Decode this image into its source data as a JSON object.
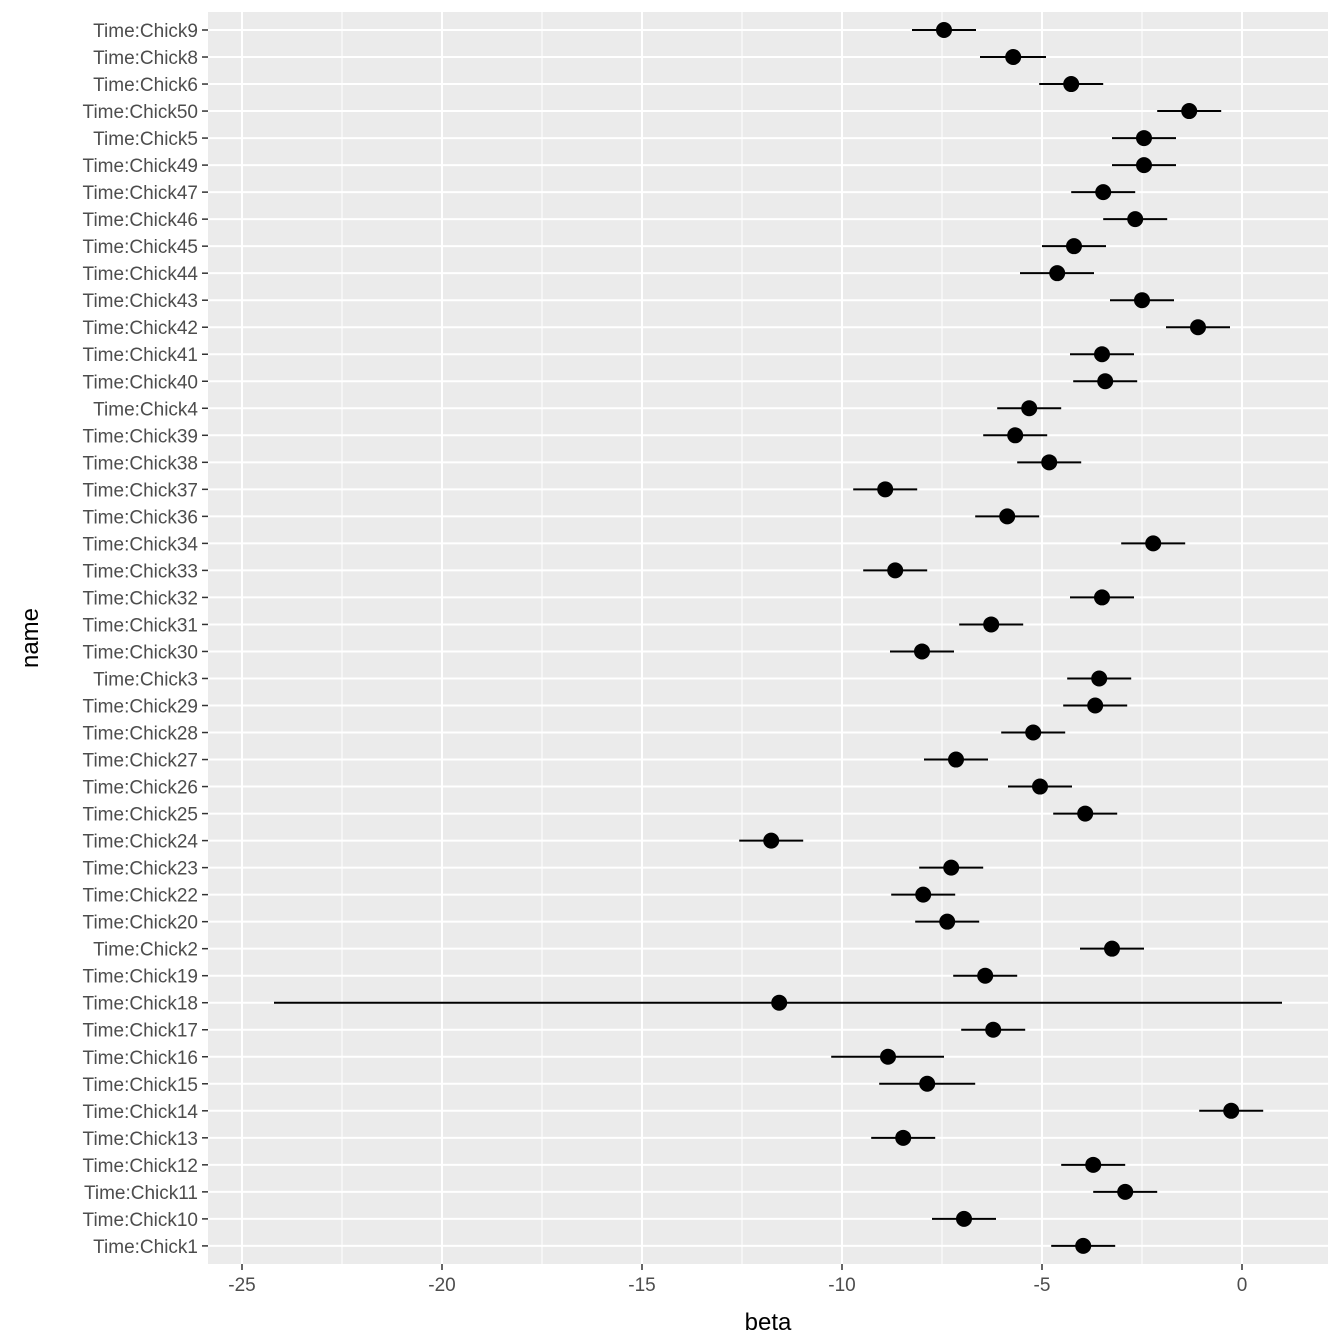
{
  "chart_data": {
    "type": "errorbar",
    "xlabel": "beta",
    "ylabel": "name",
    "xlim": [
      -25.85,
      2.15
    ],
    "xticks": [
      -25,
      -20,
      -15,
      -10,
      -5,
      0
    ],
    "xtick_labels": [
      "-25",
      "-20",
      "-15",
      "-10",
      "-5",
      "0"
    ],
    "grid": true,
    "colors": {
      "panel": "#ebebeb",
      "grid": "#ffffff",
      "point": "#000000",
      "tick_text": "#4d4d4d"
    },
    "points": [
      {
        "name": "Time:Chick9",
        "beta": -7.45,
        "lo": -8.25,
        "hi": -6.65
      },
      {
        "name": "Time:Chick8",
        "beta": -5.72,
        "lo": -6.55,
        "hi": -4.9
      },
      {
        "name": "Time:Chick6",
        "beta": -4.27,
        "lo": -5.07,
        "hi": -3.47
      },
      {
        "name": "Time:Chick50",
        "beta": -1.32,
        "lo": -2.12,
        "hi": -0.52
      },
      {
        "name": "Time:Chick5",
        "beta": -2.45,
        "lo": -3.25,
        "hi": -1.65
      },
      {
        "name": "Time:Chick49",
        "beta": -2.45,
        "lo": -3.25,
        "hi": -1.65
      },
      {
        "name": "Time:Chick47",
        "beta": -3.47,
        "lo": -4.27,
        "hi": -2.67
      },
      {
        "name": "Time:Chick46",
        "beta": -2.67,
        "lo": -3.47,
        "hi": -1.87
      },
      {
        "name": "Time:Chick45",
        "beta": -4.2,
        "lo": -5.0,
        "hi": -3.4
      },
      {
        "name": "Time:Chick44",
        "beta": -4.62,
        "lo": -5.55,
        "hi": -3.7
      },
      {
        "name": "Time:Chick43",
        "beta": -2.5,
        "lo": -3.3,
        "hi": -1.7
      },
      {
        "name": "Time:Chick42",
        "beta": -1.1,
        "lo": -1.9,
        "hi": -0.3
      },
      {
        "name": "Time:Chick41",
        "beta": -3.5,
        "lo": -4.3,
        "hi": -2.7
      },
      {
        "name": "Time:Chick40",
        "beta": -3.42,
        "lo": -4.22,
        "hi": -2.62
      },
      {
        "name": "Time:Chick4",
        "beta": -5.32,
        "lo": -6.12,
        "hi": -4.52
      },
      {
        "name": "Time:Chick39",
        "beta": -5.67,
        "lo": -6.47,
        "hi": -4.87
      },
      {
        "name": "Time:Chick38",
        "beta": -4.82,
        "lo": -5.62,
        "hi": -4.02
      },
      {
        "name": "Time:Chick37",
        "beta": -8.92,
        "lo": -9.72,
        "hi": -8.12
      },
      {
        "name": "Time:Chick36",
        "beta": -5.87,
        "lo": -6.67,
        "hi": -5.07
      },
      {
        "name": "Time:Chick34",
        "beta": -2.22,
        "lo": -3.02,
        "hi": -1.42
      },
      {
        "name": "Time:Chick33",
        "beta": -8.67,
        "lo": -9.47,
        "hi": -7.87
      },
      {
        "name": "Time:Chick32",
        "beta": -3.5,
        "lo": -4.3,
        "hi": -2.7
      },
      {
        "name": "Time:Chick31",
        "beta": -6.27,
        "lo": -7.07,
        "hi": -5.47
      },
      {
        "name": "Time:Chick30",
        "beta": -8.0,
        "lo": -8.8,
        "hi": -7.2
      },
      {
        "name": "Time:Chick3",
        "beta": -3.57,
        "lo": -4.37,
        "hi": -2.77
      },
      {
        "name": "Time:Chick29",
        "beta": -3.67,
        "lo": -4.47,
        "hi": -2.87
      },
      {
        "name": "Time:Chick28",
        "beta": -5.22,
        "lo": -6.02,
        "hi": -4.42
      },
      {
        "name": "Time:Chick27",
        "beta": -7.15,
        "lo": -7.95,
        "hi": -6.35
      },
      {
        "name": "Time:Chick26",
        "beta": -5.05,
        "lo": -5.85,
        "hi": -4.25
      },
      {
        "name": "Time:Chick25",
        "beta": -3.92,
        "lo": -4.72,
        "hi": -3.12
      },
      {
        "name": "Time:Chick24",
        "beta": -11.77,
        "lo": -12.57,
        "hi": -10.97
      },
      {
        "name": "Time:Chick23",
        "beta": -7.27,
        "lo": -8.07,
        "hi": -6.47
      },
      {
        "name": "Time:Chick22",
        "beta": -7.97,
        "lo": -8.77,
        "hi": -7.17
      },
      {
        "name": "Time:Chick20",
        "beta": -7.37,
        "lo": -8.17,
        "hi": -6.57
      },
      {
        "name": "Time:Chick2",
        "beta": -3.25,
        "lo": -4.05,
        "hi": -2.45
      },
      {
        "name": "Time:Chick19",
        "beta": -6.42,
        "lo": -7.22,
        "hi": -5.62
      },
      {
        "name": "Time:Chick18",
        "beta": -11.57,
        "lo": -24.2,
        "hi": 1.0
      },
      {
        "name": "Time:Chick17",
        "beta": -6.22,
        "lo": -7.02,
        "hi": -5.42
      },
      {
        "name": "Time:Chick16",
        "beta": -8.85,
        "lo": -10.27,
        "hi": -7.45
      },
      {
        "name": "Time:Chick15",
        "beta": -7.87,
        "lo": -9.07,
        "hi": -6.67
      },
      {
        "name": "Time:Chick14",
        "beta": -0.27,
        "lo": -1.07,
        "hi": 0.53
      },
      {
        "name": "Time:Chick13",
        "beta": -8.47,
        "lo": -9.27,
        "hi": -7.67
      },
      {
        "name": "Time:Chick12",
        "beta": -3.72,
        "lo": -4.52,
        "hi": -2.92
      },
      {
        "name": "Time:Chick11",
        "beta": -2.92,
        "lo": -3.72,
        "hi": -2.12
      },
      {
        "name": "Time:Chick10",
        "beta": -6.95,
        "lo": -7.75,
        "hi": -6.15
      },
      {
        "name": "Time:Chick1",
        "beta": -3.97,
        "lo": -4.77,
        "hi": -3.17
      }
    ]
  }
}
